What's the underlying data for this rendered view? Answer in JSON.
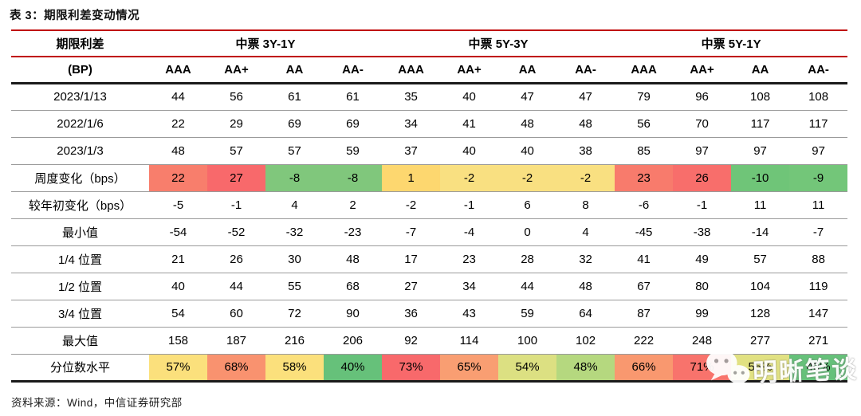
{
  "title": "表 3：期限利差变动情况",
  "source_note": "资料来源：Wind，中信证券研究部",
  "watermark": {
    "text": "明晰笔谈",
    "icon": "wechat-icon"
  },
  "colors": {
    "header_rule_red": "#C00000",
    "heavy_rule_black": "#1A1A1A",
    "row_rule_gray": "#9B9B9B"
  },
  "chart_data": {
    "type": "table",
    "title": "表 3：期限利差变动情况",
    "column_group_header": {
      "label": "期限利差",
      "groups": [
        "中票 3Y-1Y",
        "中票 5Y-3Y",
        "中票  5Y-1Y"
      ]
    },
    "rating_header": {
      "label": "(BP)",
      "ratings": [
        "AAA",
        "AA+",
        "AA",
        "AA-",
        "AAA",
        "AA+",
        "AA",
        "AA-",
        "AAA",
        "AA+",
        "AA",
        "AA-"
      ]
    },
    "rows": [
      {
        "label": "2023/1/13",
        "values": [
          "44",
          "56",
          "61",
          "61",
          "35",
          "40",
          "47",
          "47",
          "79",
          "96",
          "108",
          "108"
        ]
      },
      {
        "label": "2022/1/6",
        "values": [
          "22",
          "29",
          "69",
          "69",
          "34",
          "41",
          "48",
          "48",
          "56",
          "70",
          "117",
          "117"
        ]
      },
      {
        "label": "2023/1/3",
        "values": [
          "48",
          "57",
          "57",
          "59",
          "37",
          "40",
          "40",
          "38",
          "85",
          "97",
          "97",
          "97"
        ]
      },
      {
        "label": "周度变化（bps）",
        "values": [
          "22",
          "27",
          "-8",
          "-8",
          "1",
          "-2",
          "-2",
          "-2",
          "23",
          "26",
          "-10",
          "-9"
        ],
        "cell_colors": [
          "#F87E6C",
          "#F8696B",
          "#80C77C",
          "#80C77C",
          "#FDD76F",
          "#F9E081",
          "#F9E081",
          "#F9E081",
          "#F87B6C",
          "#F86E6B",
          "#6FC578",
          "#73C679"
        ]
      },
      {
        "label": "较年初变化（bps）",
        "values": [
          "-5",
          "-1",
          "4",
          "2",
          "-2",
          "-1",
          "6",
          "8",
          "-6",
          "-1",
          "11",
          "11"
        ]
      },
      {
        "label": "最小值",
        "values": [
          "-54",
          "-52",
          "-32",
          "-23",
          "-7",
          "-4",
          "0",
          "4",
          "-45",
          "-38",
          "-14",
          "-7"
        ]
      },
      {
        "label": "1/4 位置",
        "values": [
          "21",
          "26",
          "30",
          "48",
          "17",
          "23",
          "28",
          "32",
          "41",
          "49",
          "57",
          "88"
        ]
      },
      {
        "label": "1/2 位置",
        "values": [
          "40",
          "44",
          "55",
          "68",
          "27",
          "34",
          "44",
          "48",
          "67",
          "80",
          "104",
          "119"
        ]
      },
      {
        "label": "3/4 位置",
        "values": [
          "54",
          "60",
          "72",
          "90",
          "36",
          "43",
          "59",
          "64",
          "87",
          "99",
          "128",
          "147"
        ]
      },
      {
        "label": "最大值",
        "values": [
          "158",
          "187",
          "216",
          "206",
          "92",
          "114",
          "100",
          "102",
          "222",
          "248",
          "277",
          "271"
        ]
      },
      {
        "label": "分位数水平",
        "values": [
          "57%",
          "68%",
          "58%",
          "40%",
          "73%",
          "65%",
          "54%",
          "48%",
          "66%",
          "71%",
          "55%",
          "40%"
        ],
        "cell_colors": [
          "#FBE07C",
          "#F9926F",
          "#FBE07C",
          "#66C17A",
          "#F8696B",
          "#F99E72",
          "#DCE082",
          "#B5D87F",
          "#F9986F",
          "#F8736C",
          "#E1E182",
          "#66C17A"
        ]
      }
    ]
  }
}
